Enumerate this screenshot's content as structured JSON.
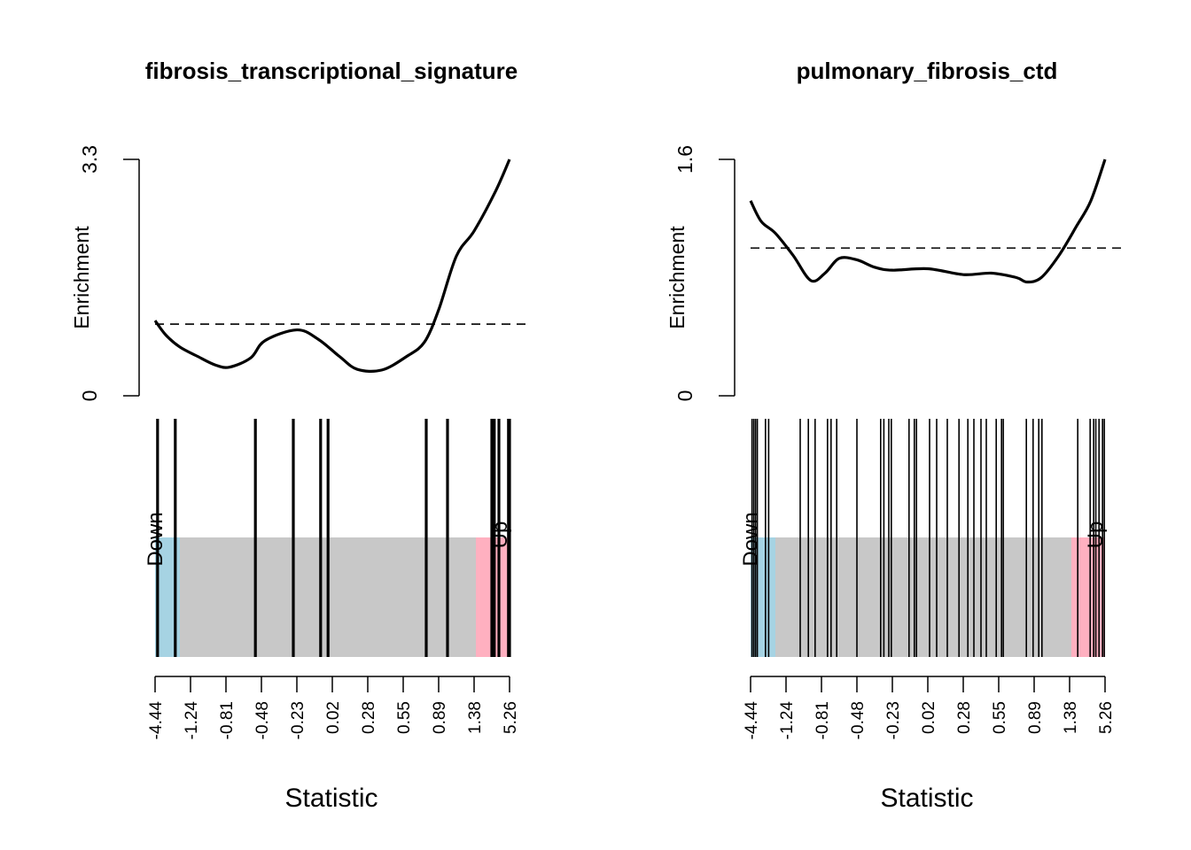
{
  "chart_data": [
    {
      "type": "barcode-enrichment",
      "title": "fibrosis_transcriptional_signature",
      "ylabel": "Enrichment",
      "xlabel": "Statistic",
      "yticks": [
        "0",
        "3.3"
      ],
      "ylim": [
        0,
        3.3
      ],
      "baseline": 1.0,
      "regions": {
        "down": {
          "label": "Down",
          "color": "#a6d3e3",
          "from": 0,
          "to": 0.07
        },
        "middle": {
          "color": "#c8c8c8"
        },
        "up": {
          "label": "Up",
          "color": "#ffb0c0",
          "from": 0.905,
          "to": 1
        }
      },
      "x_tick_labels": [
        "-4.44",
        "-1.24",
        "-0.81",
        "-0.48",
        "-0.23",
        "0.02",
        "0.28",
        "0.55",
        "0.89",
        "1.38",
        "5.26"
      ],
      "enrichment_curve": [
        [
          0.0,
          1.05
        ],
        [
          0.03,
          0.85
        ],
        [
          0.07,
          0.68
        ],
        [
          0.12,
          0.55
        ],
        [
          0.17,
          0.43
        ],
        [
          0.21,
          0.4
        ],
        [
          0.27,
          0.53
        ],
        [
          0.31,
          0.77
        ],
        [
          0.4,
          0.92
        ],
        [
          0.46,
          0.79
        ],
        [
          0.52,
          0.55
        ],
        [
          0.57,
          0.37
        ],
        [
          0.64,
          0.36
        ],
        [
          0.71,
          0.55
        ],
        [
          0.76,
          0.75
        ],
        [
          0.8,
          1.2
        ],
        [
          0.85,
          1.95
        ],
        [
          0.9,
          2.3
        ],
        [
          0.96,
          2.85
        ],
        [
          1.0,
          3.3
        ]
      ],
      "barcodes": [
        0.007,
        0.057,
        0.283,
        0.39,
        0.467,
        0.488,
        0.765,
        0.825,
        0.95,
        0.957,
        0.97,
        0.997,
        1.0
      ]
    },
    {
      "type": "barcode-enrichment",
      "title": "pulmonary_fibrosis_ctd",
      "ylabel": "Enrichment",
      "xlabel": "Statistic",
      "yticks": [
        "0",
        "1.6"
      ],
      "ylim": [
        0,
        1.6
      ],
      "baseline": 1.0,
      "regions": {
        "down": {
          "label": "Down",
          "color": "#a6d3e3",
          "from": 0,
          "to": 0.07
        },
        "middle": {
          "color": "#c8c8c8"
        },
        "up": {
          "label": "Up",
          "color": "#ffb0c0",
          "from": 0.905,
          "to": 1
        }
      },
      "x_tick_labels": [
        "-4.44",
        "-1.24",
        "-0.81",
        "-0.48",
        "-0.23",
        "0.02",
        "0.28",
        "0.55",
        "0.89",
        "1.38",
        "5.26"
      ],
      "enrichment_curve": [
        [
          0.0,
          1.32
        ],
        [
          0.03,
          1.18
        ],
        [
          0.07,
          1.1
        ],
        [
          0.12,
          0.95
        ],
        [
          0.17,
          0.78
        ],
        [
          0.21,
          0.83
        ],
        [
          0.25,
          0.93
        ],
        [
          0.3,
          0.92
        ],
        [
          0.35,
          0.87
        ],
        [
          0.4,
          0.85
        ],
        [
          0.5,
          0.86
        ],
        [
          0.6,
          0.82
        ],
        [
          0.68,
          0.83
        ],
        [
          0.75,
          0.8
        ],
        [
          0.78,
          0.77
        ],
        [
          0.82,
          0.8
        ],
        [
          0.87,
          0.95
        ],
        [
          0.92,
          1.15
        ],
        [
          0.96,
          1.32
        ],
        [
          1.0,
          1.6
        ]
      ],
      "barcodes": [
        0.004,
        0.009,
        0.014,
        0.019,
        0.042,
        0.051,
        0.14,
        0.163,
        0.182,
        0.217,
        0.227,
        0.243,
        0.3,
        0.367,
        0.376,
        0.39,
        0.397,
        0.447,
        0.462,
        0.468,
        0.505,
        0.525,
        0.555,
        0.588,
        0.613,
        0.63,
        0.65,
        0.665,
        0.693,
        0.708,
        0.713,
        0.778,
        0.797,
        0.813,
        0.822,
        0.923,
        0.958,
        0.968,
        0.974,
        0.983,
        0.993,
        0.998
      ]
    }
  ]
}
